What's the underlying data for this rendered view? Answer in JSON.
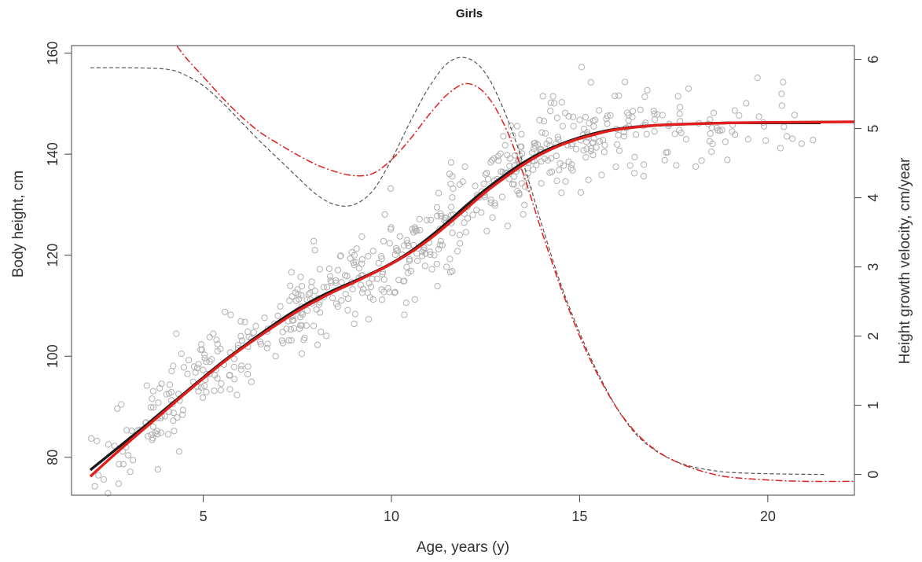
{
  "chart_data": {
    "type": "line",
    "title": "Girls",
    "xlabel": "Age, years (y)",
    "ylabel_left": "Body height, cm",
    "ylabel_right": "Height growth velocity, cm/year",
    "xlim": [
      1.5,
      22.3
    ],
    "ylim_left": [
      72.5,
      161.5
    ],
    "ylim_right": [
      -0.3,
      6.2
    ],
    "x_ticks": [
      5,
      10,
      15,
      20
    ],
    "y_left_ticks": [
      80,
      100,
      120,
      140,
      160
    ],
    "y_right_ticks": [
      0,
      1,
      2,
      3,
      4,
      5,
      6
    ],
    "grid": false,
    "colors": {
      "scatter": "#b0b0b0",
      "curve_black": "#1a1a1a",
      "curve_red": "#e0201e",
      "velocity_black": "#555555",
      "velocity_red": "#e0201e",
      "axis": "#444444"
    },
    "series": [
      {
        "id": "height-black",
        "axis": "left",
        "style": "solid",
        "color": "#1a1a1a",
        "points": [
          [
            2,
            77.5
          ],
          [
            2.5,
            80.5
          ],
          [
            3,
            83.5
          ],
          [
            3.5,
            86.5
          ],
          [
            4,
            89.6
          ],
          [
            4.5,
            92.7
          ],
          [
            5,
            95.8
          ],
          [
            5.5,
            98.8
          ],
          [
            6,
            101.6
          ],
          [
            6.5,
            104.3
          ],
          [
            7,
            106.9
          ],
          [
            7.5,
            109.3
          ],
          [
            8,
            111.4
          ],
          [
            8.5,
            113.2
          ],
          [
            9,
            114.8
          ],
          [
            9.5,
            116.5
          ],
          [
            10,
            118.4
          ],
          [
            10.5,
            120.7
          ],
          [
            11,
            123.5
          ],
          [
            11.5,
            126.6
          ],
          [
            12,
            129.9
          ],
          [
            12.5,
            133
          ],
          [
            13,
            135.8
          ],
          [
            13.5,
            138.3
          ],
          [
            14,
            140.4
          ],
          [
            14.5,
            142
          ],
          [
            15,
            143.3
          ],
          [
            15.5,
            144.3
          ],
          [
            16,
            145
          ],
          [
            17,
            145.7
          ],
          [
            18,
            146
          ],
          [
            19,
            146.2
          ],
          [
            20,
            146.2
          ],
          [
            21.4,
            146.2
          ]
        ]
      },
      {
        "id": "height-red",
        "axis": "left",
        "style": "solid",
        "color": "#e0201e",
        "points": [
          [
            2,
            76.2
          ],
          [
            2.5,
            79.6
          ],
          [
            3,
            82.9
          ],
          [
            3.5,
            86.1
          ],
          [
            4,
            89.3
          ],
          [
            4.5,
            92.5
          ],
          [
            5,
            95.6
          ],
          [
            5.5,
            98.6
          ],
          [
            6,
            101.4
          ],
          [
            6.5,
            104
          ],
          [
            7,
            106.5
          ],
          [
            7.5,
            108.9
          ],
          [
            8,
            111
          ],
          [
            8.5,
            112.9
          ],
          [
            9,
            114.6
          ],
          [
            9.5,
            116.4
          ],
          [
            10,
            118.3
          ],
          [
            10.5,
            120.5
          ],
          [
            11,
            123.1
          ],
          [
            11.5,
            126.1
          ],
          [
            12,
            129.3
          ],
          [
            12.5,
            132.5
          ],
          [
            13,
            135.3
          ],
          [
            13.5,
            137.9
          ],
          [
            14,
            140.1
          ],
          [
            14.5,
            141.8
          ],
          [
            15,
            143.1
          ],
          [
            15.5,
            144.1
          ],
          [
            16,
            144.9
          ],
          [
            17,
            145.7
          ],
          [
            18,
            146
          ],
          [
            19,
            146.2
          ],
          [
            20,
            146.3
          ],
          [
            22.3,
            146.4
          ]
        ]
      },
      {
        "id": "velocity-black",
        "axis": "right",
        "style": "dashed",
        "color": "#555555",
        "points": [
          [
            2,
            5.88
          ],
          [
            3,
            5.88
          ],
          [
            4,
            5.86
          ],
          [
            4.5,
            5.78
          ],
          [
            5,
            5.62
          ],
          [
            5.5,
            5.38
          ],
          [
            6,
            5.1
          ],
          [
            6.5,
            4.82
          ],
          [
            7,
            4.56
          ],
          [
            7.5,
            4.3
          ],
          [
            8,
            4.05
          ],
          [
            8.5,
            3.9
          ],
          [
            9,
            3.9
          ],
          [
            9.5,
            4.1
          ],
          [
            10,
            4.55
          ],
          [
            10.5,
            5.1
          ],
          [
            11,
            5.6
          ],
          [
            11.5,
            5.95
          ],
          [
            12,
            6.02
          ],
          [
            12.5,
            5.8
          ],
          [
            13,
            5.25
          ],
          [
            13.5,
            4.5
          ],
          [
            14,
            3.6
          ],
          [
            14.5,
            2.75
          ],
          [
            15,
            2.05
          ],
          [
            15.5,
            1.45
          ],
          [
            16,
            0.95
          ],
          [
            16.5,
            0.58
          ],
          [
            17,
            0.35
          ],
          [
            17.5,
            0.2
          ],
          [
            18,
            0.11
          ],
          [
            18.5,
            0.06
          ],
          [
            19,
            0.03
          ],
          [
            20,
            0.01
          ],
          [
            21.5,
            0.0
          ]
        ]
      },
      {
        "id": "velocity-red",
        "axis": "right",
        "style": "dash-dot",
        "color": "#e0201e",
        "points": [
          [
            4.1,
            6.35
          ],
          [
            4.5,
            6.05
          ],
          [
            5,
            5.75
          ],
          [
            5.5,
            5.45
          ],
          [
            6,
            5.18
          ],
          [
            6.5,
            4.95
          ],
          [
            7,
            4.78
          ],
          [
            7.5,
            4.62
          ],
          [
            8,
            4.48
          ],
          [
            8.5,
            4.38
          ],
          [
            9,
            4.32
          ],
          [
            9.5,
            4.35
          ],
          [
            10,
            4.55
          ],
          [
            10.5,
            4.85
          ],
          [
            11,
            5.2
          ],
          [
            11.5,
            5.5
          ],
          [
            12,
            5.65
          ],
          [
            12.5,
            5.5
          ],
          [
            13,
            5.05
          ],
          [
            13.5,
            4.35
          ],
          [
            14,
            3.5
          ],
          [
            14.5,
            2.7
          ],
          [
            15,
            2.0
          ],
          [
            15.5,
            1.42
          ],
          [
            16,
            0.95
          ],
          [
            16.5,
            0.6
          ],
          [
            17,
            0.36
          ],
          [
            17.5,
            0.2
          ],
          [
            18,
            0.09
          ],
          [
            18.5,
            0.01
          ],
          [
            19,
            -0.04
          ],
          [
            20,
            -0.08
          ],
          [
            21,
            -0.1
          ],
          [
            22.3,
            -0.1
          ]
        ]
      }
    ],
    "scatter": {
      "seed": 7,
      "count": 620,
      "axis": "left",
      "color": "#b0b0b0",
      "x_range": [
        2,
        21.3
      ],
      "density_weights": [
        [
          2,
          0.2
        ],
        [
          3,
          0.8
        ],
        [
          4,
          1.0
        ],
        [
          6,
          1.0
        ],
        [
          9,
          1.2
        ],
        [
          12,
          1.4
        ],
        [
          14,
          1.6
        ],
        [
          15,
          1.2
        ],
        [
          17,
          0.6
        ],
        [
          19,
          0.35
        ],
        [
          21.3,
          0.15
        ]
      ],
      "spread_sd": 4.5,
      "follows": "height-black"
    }
  }
}
